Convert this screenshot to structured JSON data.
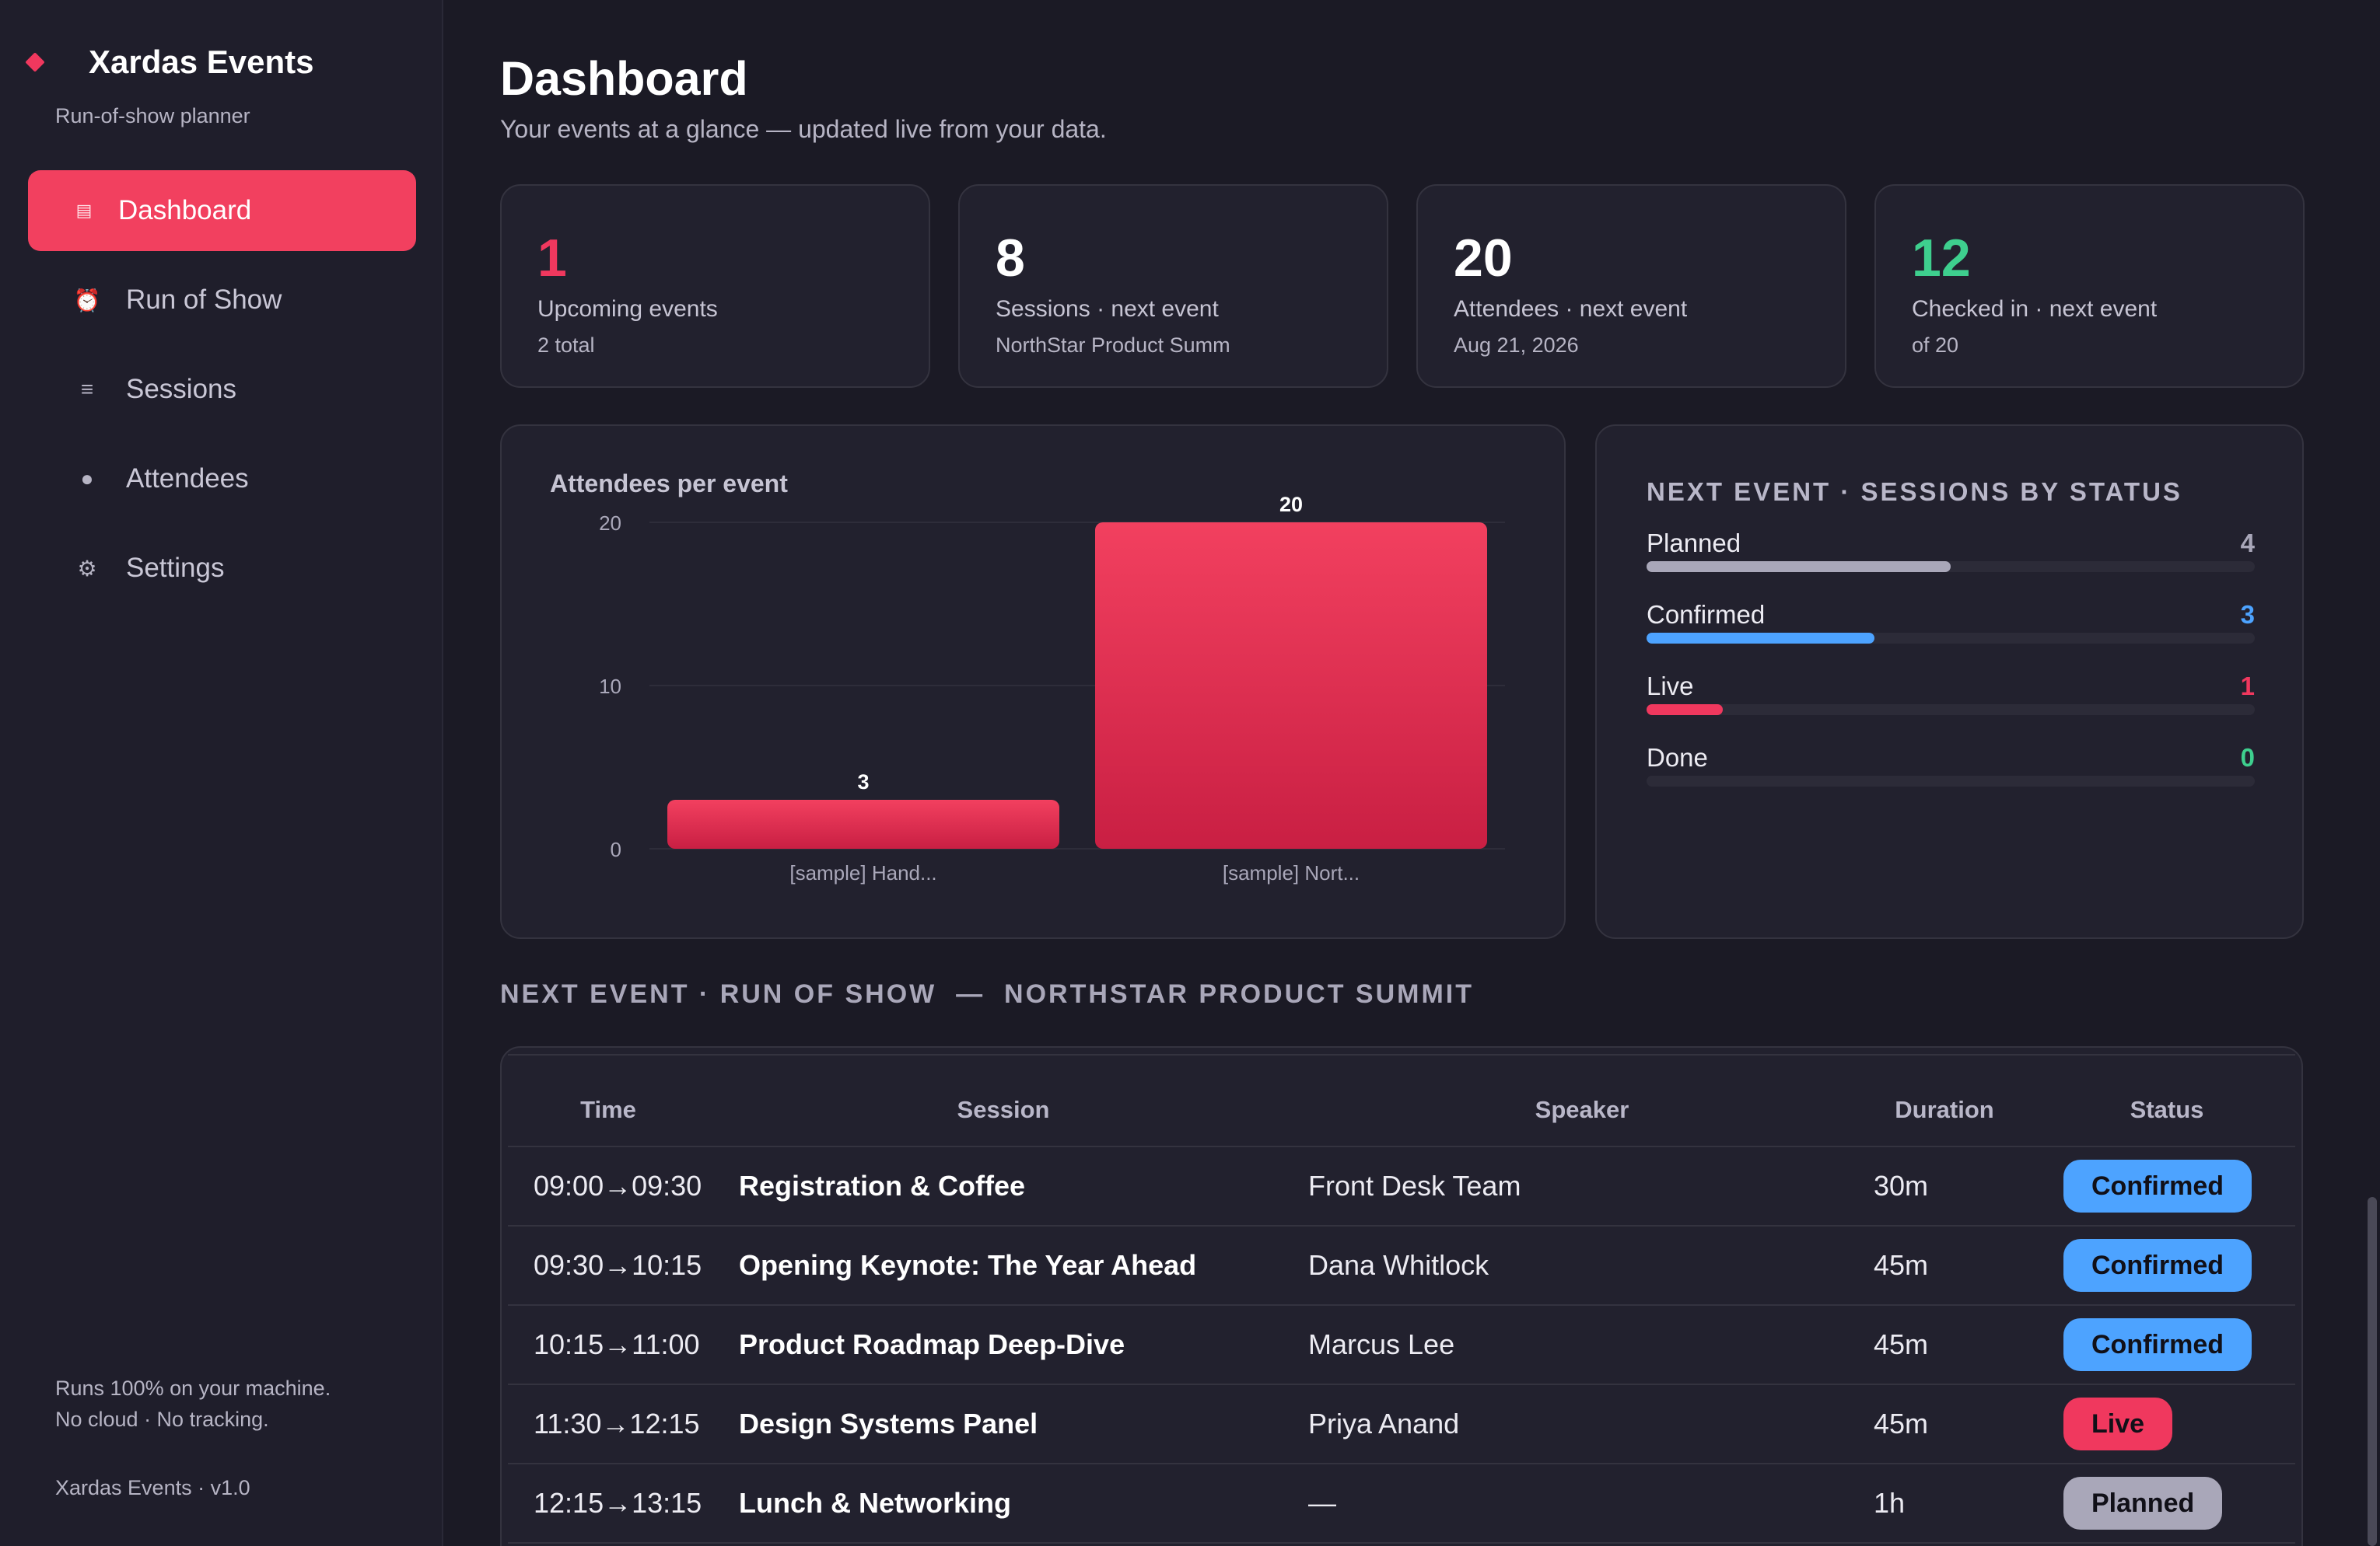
{
  "sidebar": {
    "brand_title": "Xardas Events",
    "brand_subtitle": "Run-of-show planner",
    "items": [
      {
        "label": "Dashboard",
        "icon": "calendar-icon",
        "glyph": "▤",
        "active": true
      },
      {
        "label": "Run of Show",
        "icon": "alarm-clock-icon",
        "glyph": "⏰",
        "active": false
      },
      {
        "label": "Sessions",
        "icon": "list-icon",
        "glyph": "≡",
        "active": false
      },
      {
        "label": "Attendees",
        "icon": "person-icon",
        "glyph": "●",
        "active": false
      },
      {
        "label": "Settings",
        "icon": "gear-icon",
        "glyph": "⚙",
        "active": false
      }
    ],
    "footer_line1": "Runs 100% on your machine.",
    "footer_line2": "No cloud · No tracking.",
    "version": "Xardas Events · v1.0"
  },
  "header": {
    "title": "Dashboard",
    "subtitle": "Your events at a glance — updated live from your data."
  },
  "stats": [
    {
      "value": "1",
      "label": "Upcoming events",
      "sub": "2 total",
      "color": "#f0385e"
    },
    {
      "value": "8",
      "label": "Sessions · next event",
      "sub": "NorthStar Product Summ",
      "color": "#ffffff"
    },
    {
      "value": "20",
      "label": "Attendees · next event",
      "sub": "Aug 21, 2026",
      "color": "#ffffff"
    },
    {
      "value": "12",
      "label": "Checked in · next event",
      "sub": "of 20",
      "color": "#3ecf8e"
    }
  ],
  "chart_data": {
    "type": "bar",
    "title": "Attendees per event",
    "categories": [
      "[sample] Hand...",
      "[sample] Nort..."
    ],
    "values": [
      3,
      20
    ],
    "ylim": [
      0,
      20
    ],
    "yticks": [
      0,
      10,
      20
    ],
    "grid": true,
    "bar_color": "#f0385e"
  },
  "status_panel": {
    "title": "NEXT EVENT · SESSIONS BY STATUS",
    "total": 8,
    "rows": [
      {
        "name": "Planned",
        "count": 4,
        "color": "#a9a7b9"
      },
      {
        "name": "Confirmed",
        "count": 3,
        "color": "#4da3ff"
      },
      {
        "name": "Live",
        "count": 1,
        "color": "#f0385e"
      },
      {
        "name": "Done",
        "count": 0,
        "color": "#3ecf8e"
      }
    ]
  },
  "run_of_show": {
    "heading": "NEXT EVENT · RUN OF SHOW  —  NORTHSTAR PRODUCT SUMMIT",
    "columns": [
      "Time",
      "Session",
      "Speaker",
      "Duration",
      "Status"
    ],
    "rows": [
      {
        "time": "09:00→09:30",
        "session": "Registration & Coffee",
        "speaker": "Front Desk Team",
        "duration": "30m",
        "status": "Confirmed"
      },
      {
        "time": "09:30→10:15",
        "session": "Opening Keynote: The Year Ahead",
        "speaker": "Dana Whitlock",
        "duration": "45m",
        "status": "Confirmed"
      },
      {
        "time": "10:15→11:00",
        "session": "Product Roadmap Deep-Dive",
        "speaker": "Marcus Lee",
        "duration": "45m",
        "status": "Confirmed"
      },
      {
        "time": "11:30→12:15",
        "session": "Design Systems Panel",
        "speaker": "Priya Anand",
        "duration": "45m",
        "status": "Live"
      },
      {
        "time": "12:15→13:15",
        "session": "Lunch & Networking",
        "speaker": "—",
        "duration": "1h",
        "status": "Planned"
      }
    ],
    "status_colors": {
      "Confirmed": "#4da3ff",
      "Live": "#f0385e",
      "Planned": "#a9a7b9"
    }
  }
}
